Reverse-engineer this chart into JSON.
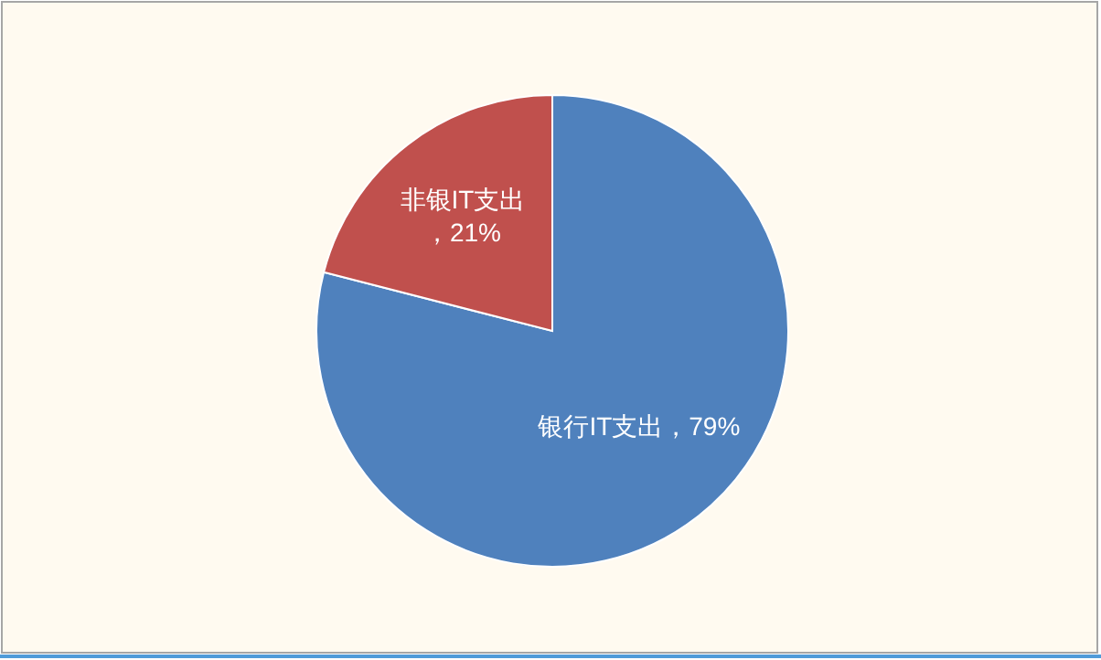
{
  "chart_data": {
    "type": "pie",
    "categories": [
      "银行IT支出",
      "非银IT支出"
    ],
    "values": [
      79,
      21
    ],
    "value_labels": [
      "，79%",
      "，21%"
    ],
    "colors": [
      "#4f81bd",
      "#c0504d"
    ]
  }
}
